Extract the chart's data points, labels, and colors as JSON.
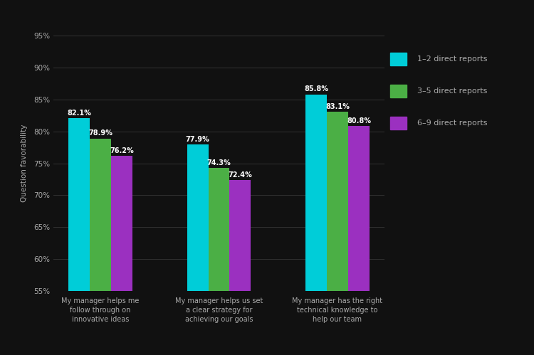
{
  "categories": [
    "My manager helps me\nfollow through on\ninnovative ideas",
    "My manager helps us set\na clear strategy for\nachieving our goals",
    "My manager has the right\ntechnical knowledge to\nhelp our team"
  ],
  "series": [
    {
      "label": "1–2 direct reports",
      "color": "#00CDD8",
      "values": [
        82.1,
        77.9,
        85.8
      ]
    },
    {
      "label": "3–5 direct reports",
      "color": "#4BAF45",
      "values": [
        78.9,
        74.3,
        83.1
      ]
    },
    {
      "label": "6–9 direct reports",
      "color": "#9B30C0",
      "values": [
        76.2,
        72.4,
        80.8
      ]
    }
  ],
  "ylabel": "Question favorability",
  "ylim": [
    55,
    95
  ],
  "yticks": [
    55,
    60,
    65,
    70,
    75,
    80,
    85,
    90,
    95
  ],
  "ytick_labels": [
    "55%",
    "60%",
    "65%",
    "70%",
    "75%",
    "80%",
    "85%",
    "90%",
    "95%"
  ],
  "background_color": "#111111",
  "text_color": "#aaaaaa",
  "grid_color": "#333333",
  "bar_width": 0.18,
  "value_fontsize": 7,
  "tick_fontsize": 7.5,
  "legend_fontsize": 8,
  "ylabel_fontsize": 7.5,
  "xtick_fontsize": 7
}
